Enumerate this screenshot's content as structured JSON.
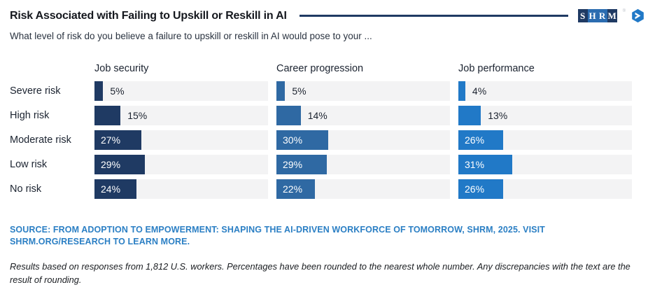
{
  "header": {
    "title": "Risk Associated with Failing to Upskill or Reskill in AI",
    "subtitle": "What level of risk do you believe a failure to upskill or reskill in AI would pose to your ...",
    "rule_color": "#1f3a63",
    "logo": {
      "letters": [
        {
          "char": "S",
          "bg": "#1f3a63"
        },
        {
          "char": "H",
          "bg": "#2b6cb0"
        },
        {
          "char": "R",
          "bg": "#2b6cb0"
        },
        {
          "char": "M",
          "bg": "#1f3a63"
        }
      ],
      "registered_mark": "®",
      "icon": "shrm-globe-arrow-icon",
      "icon_color": "#2179c7"
    }
  },
  "chart_data": {
    "type": "bar",
    "orientation": "horizontal",
    "value_format": "percent",
    "xlim": [
      0,
      100
    ],
    "grid": false,
    "legend_position": "column-headers-top",
    "track_color": "#f3f3f4",
    "inside_label_threshold": 20,
    "categories": [
      "Severe risk",
      "High risk",
      "Moderate risk",
      "Low risk",
      "No risk"
    ],
    "series": [
      {
        "name": "Job security",
        "color": "#1f3a63",
        "values": [
          5,
          15,
          27,
          29,
          24
        ]
      },
      {
        "name": "Career progression",
        "color": "#2f69a3",
        "values": [
          5,
          14,
          30,
          29,
          22
        ]
      },
      {
        "name": "Job performance",
        "color": "#2179c7",
        "values": [
          4,
          13,
          26,
          31,
          26
        ]
      }
    ]
  },
  "footer": {
    "source": "SOURCE: FROM ADOPTION TO EMPOWERMENT: SHAPING THE AI-DRIVEN WORKFORCE OF TOMORROW, SHRM, 2025. VISIT SHRM.ORG/RESEARCH TO LEARN MORE.",
    "source_color": "#2b7fc4",
    "note": "Results based on responses from 1,812 U.S. workers. Percentages have been rounded to the nearest whole number. Any discrepancies with the text are the result of rounding."
  }
}
